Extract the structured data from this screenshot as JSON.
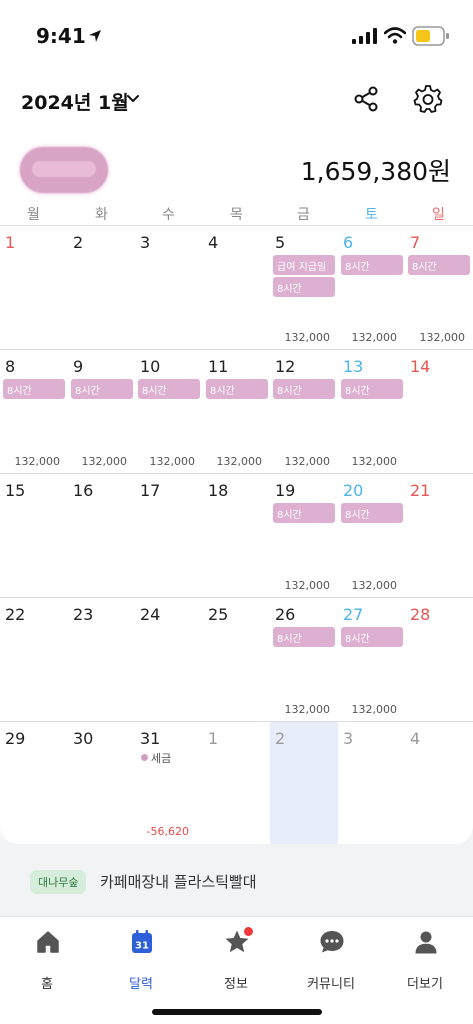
{
  "status": {
    "time": "9:41"
  },
  "header": {
    "title": "2024년 1월"
  },
  "summary": {
    "total": "1,659,380원"
  },
  "weekdays": [
    "월",
    "화",
    "수",
    "목",
    "금",
    "토",
    "일"
  ],
  "weeks": [
    {
      "days": [
        {
          "num": "1",
          "type": "holiday",
          "tags": [],
          "amount": ""
        },
        {
          "num": "2",
          "type": "",
          "tags": [],
          "amount": ""
        },
        {
          "num": "3",
          "type": "",
          "tags": [],
          "amount": ""
        },
        {
          "num": "4",
          "type": "",
          "tags": [],
          "amount": ""
        },
        {
          "num": "5",
          "type": "",
          "tags": [
            "급여 지급일",
            "8시간"
          ],
          "amount": "132,000"
        },
        {
          "num": "6",
          "type": "sat",
          "tags": [
            "8시간"
          ],
          "amount": "132,000"
        },
        {
          "num": "7",
          "type": "sun",
          "tags": [
            "8시간"
          ],
          "amount": "132,000"
        }
      ]
    },
    {
      "days": [
        {
          "num": "8",
          "type": "",
          "tags": [
            "8시간"
          ],
          "amount": "132,000"
        },
        {
          "num": "9",
          "type": "",
          "tags": [
            "8시간"
          ],
          "amount": "132,000"
        },
        {
          "num": "10",
          "type": "",
          "tags": [
            "8시간"
          ],
          "amount": "132,000"
        },
        {
          "num": "11",
          "type": "",
          "tags": [
            "8시간"
          ],
          "amount": "132,000"
        },
        {
          "num": "12",
          "type": "",
          "tags": [
            "8시간"
          ],
          "amount": "132,000"
        },
        {
          "num": "13",
          "type": "sat",
          "tags": [
            "8시간"
          ],
          "amount": "132,000"
        },
        {
          "num": "14",
          "type": "sun",
          "tags": [],
          "amount": ""
        }
      ]
    },
    {
      "days": [
        {
          "num": "15",
          "type": "",
          "tags": [],
          "amount": ""
        },
        {
          "num": "16",
          "type": "",
          "tags": [],
          "amount": ""
        },
        {
          "num": "17",
          "type": "",
          "tags": [],
          "amount": ""
        },
        {
          "num": "18",
          "type": "",
          "tags": [],
          "amount": ""
        },
        {
          "num": "19",
          "type": "",
          "tags": [
            "8시간"
          ],
          "amount": "132,000"
        },
        {
          "num": "20",
          "type": "sat",
          "tags": [
            "8시간"
          ],
          "amount": "132,000"
        },
        {
          "num": "21",
          "type": "sun",
          "tags": [],
          "amount": ""
        }
      ]
    },
    {
      "days": [
        {
          "num": "22",
          "type": "",
          "tags": [],
          "amount": ""
        },
        {
          "num": "23",
          "type": "",
          "tags": [],
          "amount": ""
        },
        {
          "num": "24",
          "type": "",
          "tags": [],
          "amount": ""
        },
        {
          "num": "25",
          "type": "",
          "tags": [],
          "amount": ""
        },
        {
          "num": "26",
          "type": "",
          "tags": [
            "8시간"
          ],
          "amount": "132,000"
        },
        {
          "num": "27",
          "type": "sat",
          "tags": [
            "8시간"
          ],
          "amount": "132,000"
        },
        {
          "num": "28",
          "type": "sun",
          "tags": [],
          "amount": ""
        }
      ]
    },
    {
      "days": [
        {
          "num": "29",
          "type": "",
          "tags": [],
          "amount": ""
        },
        {
          "num": "30",
          "type": "",
          "tags": [],
          "amount": ""
        },
        {
          "num": "31",
          "type": "",
          "tags": [],
          "amount": "-56,620",
          "note": "세금"
        },
        {
          "num": "1",
          "type": "faded",
          "tags": [],
          "amount": ""
        },
        {
          "num": "2",
          "type": "faded selected",
          "tags": [],
          "amount": ""
        },
        {
          "num": "3",
          "type": "faded",
          "tags": [],
          "amount": ""
        },
        {
          "num": "4",
          "type": "faded",
          "tags": [],
          "amount": ""
        }
      ]
    }
  ],
  "banner": {
    "badge": "대나무숲",
    "text": "카페매장내 플라스틱빨대"
  },
  "tabs": [
    {
      "label": "홈",
      "icon": "home-icon"
    },
    {
      "label": "달력",
      "icon": "calendar-icon",
      "icon_text": "31"
    },
    {
      "label": "정보",
      "icon": "star-icon"
    },
    {
      "label": "커뮤니티",
      "icon": "chat-bubble-icon"
    },
    {
      "label": "더보기",
      "icon": "person-icon"
    }
  ],
  "colors": {
    "accent": "#2d5fd8",
    "tag": "#ddb0d1",
    "saturday": "#4cb4e6",
    "sunday": "#e85555",
    "negative": "#e84c4c"
  }
}
